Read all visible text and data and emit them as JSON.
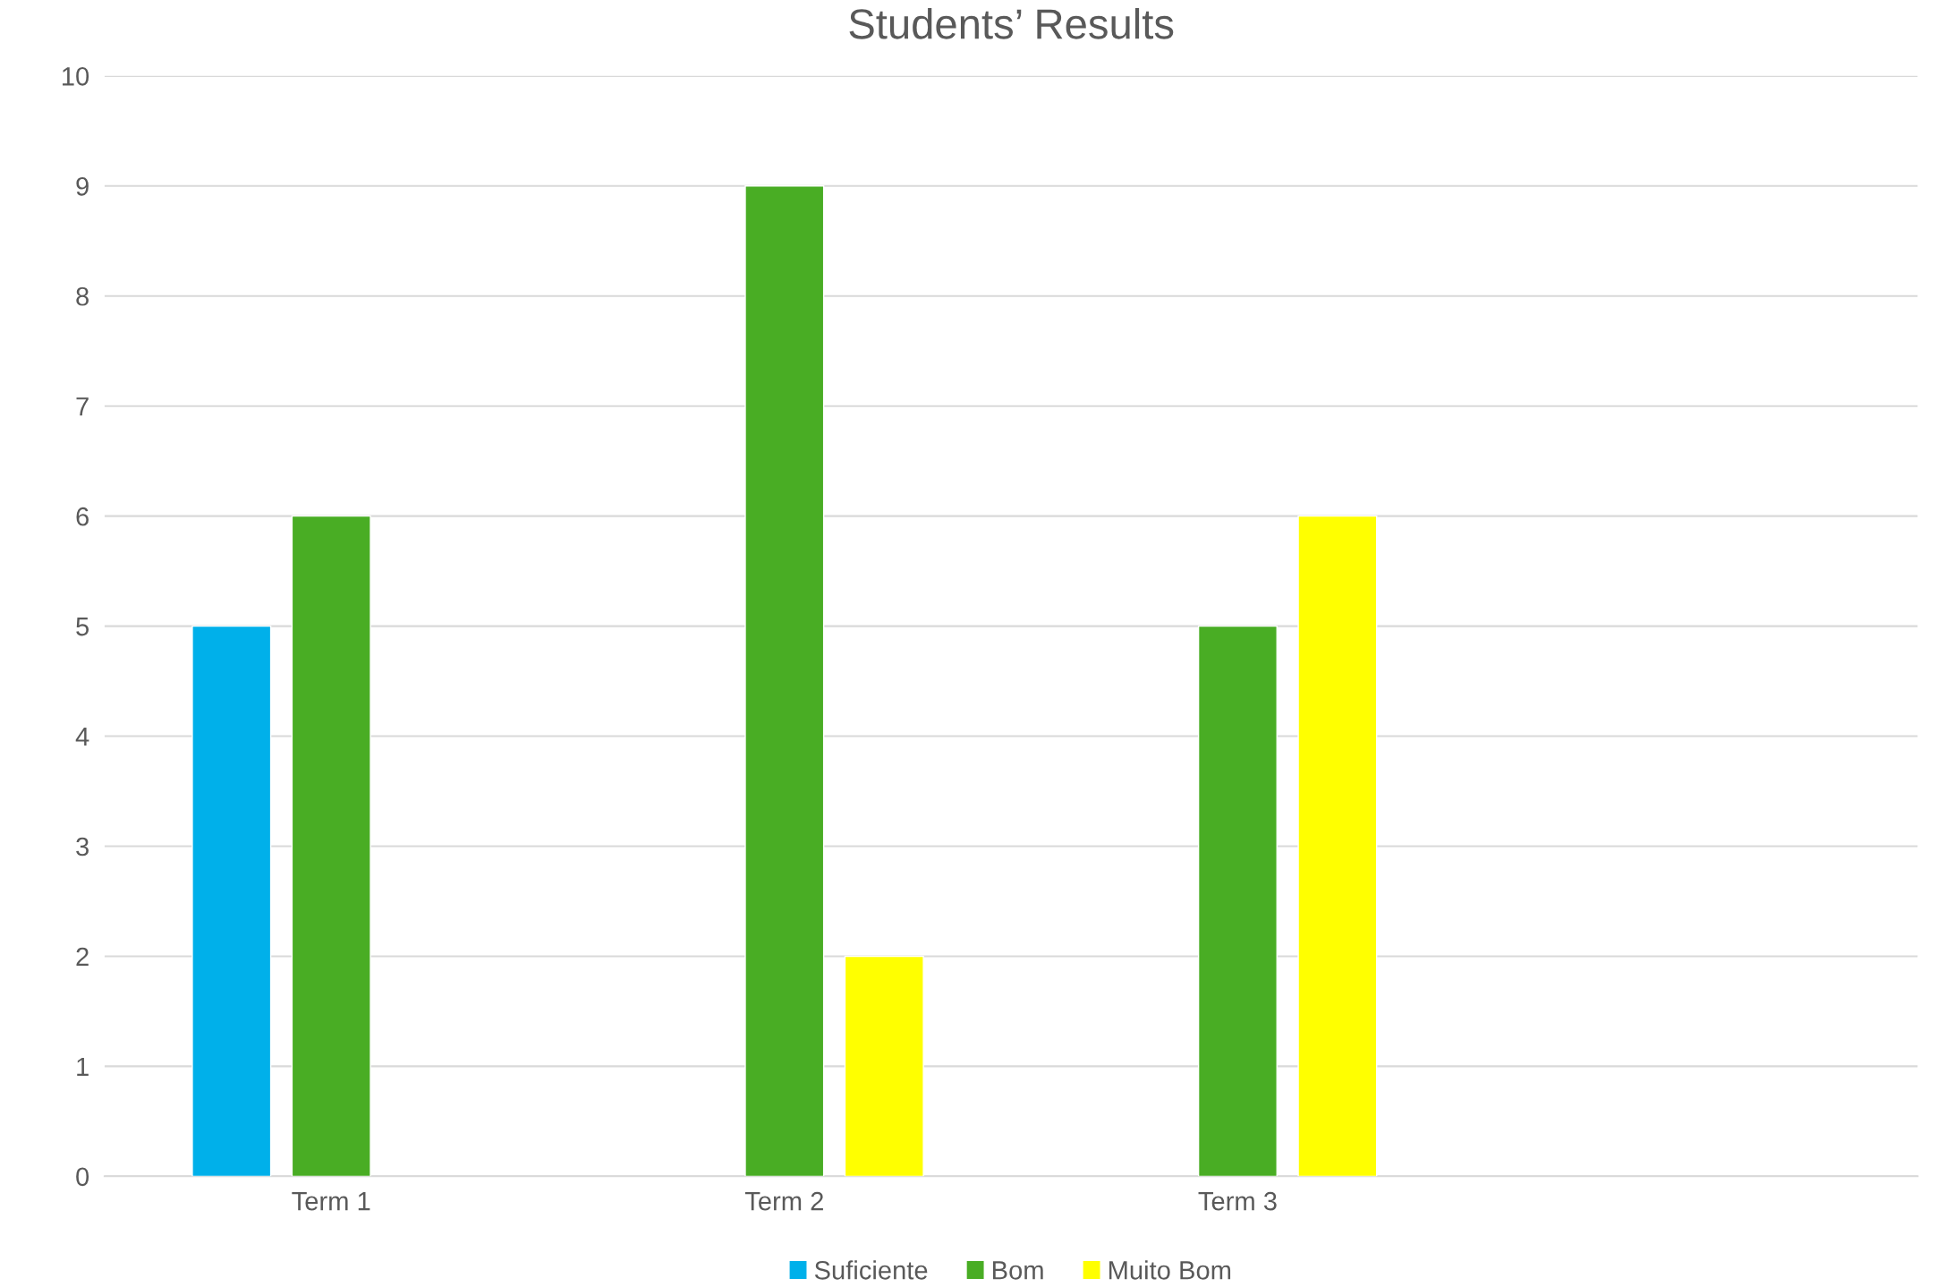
{
  "chart_data": {
    "type": "bar",
    "title": "Students’ Results",
    "categories": [
      "Term 1",
      "Term 2",
      "Term 3",
      null
    ],
    "series": [
      {
        "name": "Suficiente",
        "color": "#00b0ea",
        "values": [
          5,
          null,
          null,
          null
        ]
      },
      {
        "name": "Bom",
        "color": "#49ad24",
        "values": [
          6,
          9,
          5,
          null
        ]
      },
      {
        "name": "Muito Bom",
        "color": "#ffff00",
        "values": [
          null,
          2,
          6,
          null
        ]
      }
    ],
    "ylim": [
      0,
      10
    ],
    "yticks": [
      0,
      1,
      2,
      3,
      4,
      5,
      6,
      7,
      8,
      9,
      10
    ],
    "grid": "y",
    "legend": "bottom"
  }
}
